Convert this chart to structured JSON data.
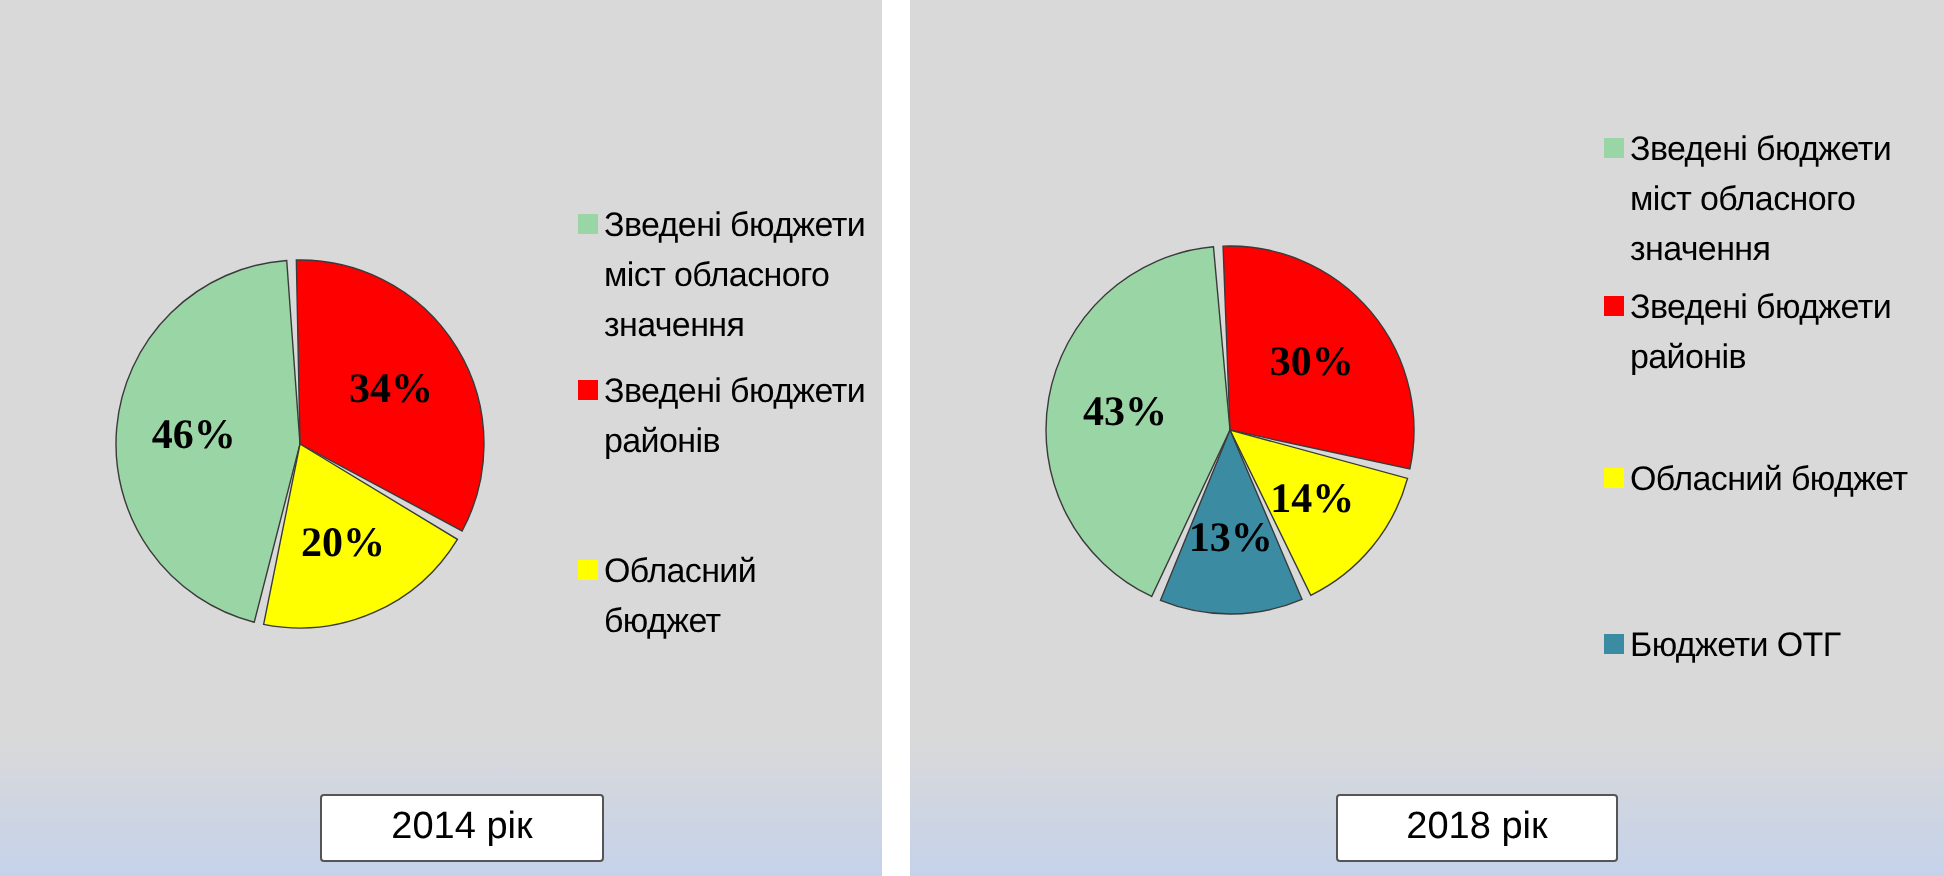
{
  "chart_data": [
    {
      "type": "pie",
      "title": "2014 рік",
      "categories": [
        "Зведені бюджети міст обласного значення",
        "Зведені бюджети районів",
        "Обласний бюджет"
      ],
      "values": [
        46,
        34,
        20
      ],
      "colors": [
        "#9ad6a5",
        "#ff0000",
        "#ffff00"
      ],
      "value_labels": [
        "46%",
        "34%",
        "20%"
      ],
      "legend": "right"
    },
    {
      "type": "pie",
      "title": "2018 рік",
      "categories": [
        "Зведені бюджети міст обласного значення",
        "Зведені бюджети районів",
        "Обласний бюджет",
        "Бюджети ОТГ"
      ],
      "values": [
        43,
        30,
        14,
        13
      ],
      "colors": [
        "#9ad6a5",
        "#ff0000",
        "#ffff00",
        "#3b8ca3"
      ],
      "value_labels": [
        "43%",
        "30%",
        "14%",
        "13%"
      ],
      "legend": "right"
    }
  ]
}
